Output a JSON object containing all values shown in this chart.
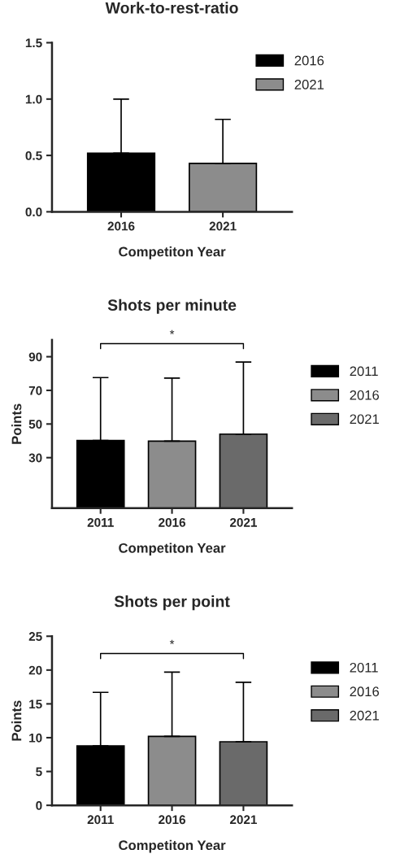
{
  "chart_data": [
    {
      "type": "bar",
      "title": "Work-to-rest-ratio",
      "xlabel": "Competiton Year",
      "categories": [
        "2016",
        "2021"
      ],
      "series": [
        {
          "name": "2016",
          "color": "#000000",
          "values": [
            0.52,
            null
          ],
          "errors": [
            [
              0.52,
              1.0
            ],
            null
          ]
        },
        {
          "name": "2021",
          "color": "#8c8c8c",
          "values": [
            null,
            0.43
          ],
          "errors": [
            null,
            [
              0.43,
              0.82
            ]
          ]
        }
      ],
      "ylim": [
        0,
        1.5
      ],
      "yticks": [
        {
          "value": 0,
          "label": "0.0"
        },
        {
          "value": 0.5,
          "label": "0.5"
        },
        {
          "value": 1,
          "label": "1.0"
        },
        {
          "value": 1.5,
          "label": "1.5"
        }
      ],
      "legend": "top right"
    },
    {
      "type": "bar",
      "title": "Shots per minute",
      "xlabel": "Competiton Year",
      "ylabel": "Points",
      "categories": [
        "2011",
        "2016",
        "2021"
      ],
      "series": [
        {
          "name": "2011",
          "color": "#000000",
          "values": [
            40.2,
            null,
            null
          ],
          "errors": [
            [
              40.2,
              77.6
            ],
            null,
            null
          ]
        },
        {
          "name": "2016",
          "color": "#8c8c8c",
          "values": [
            null,
            39.8,
            null
          ],
          "errors": [
            null,
            [
              39.8,
              77.3
            ],
            null
          ]
        },
        {
          "name": "2021",
          "color": "#6a6a6a",
          "values": [
            null,
            null,
            44.0
          ],
          "errors": [
            null,
            null,
            [
              44.0,
              86.8
            ]
          ]
        }
      ],
      "ylim": [
        0,
        100
      ],
      "yticks": [
        30,
        50,
        70,
        90
      ],
      "annotations": [
        "*"
      ],
      "legend": "right"
    },
    {
      "type": "bar",
      "title": "Shots per point",
      "xlabel": "Competiton Year",
      "ylabel": "Points",
      "categories": [
        "2011",
        "2016",
        "2021"
      ],
      "series": [
        {
          "name": "2011",
          "color": "#000000",
          "values": [
            8.8,
            null,
            null
          ],
          "errors": [
            [
              8.8,
              16.7
            ],
            null,
            null
          ]
        },
        {
          "name": "2016",
          "color": "#8c8c8c",
          "values": [
            null,
            10.2,
            null
          ],
          "errors": [
            null,
            [
              10.2,
              19.7
            ],
            null
          ]
        },
        {
          "name": "2021",
          "color": "#6a6a6a",
          "values": [
            null,
            null,
            9.4
          ],
          "errors": [
            null,
            null,
            [
              9.4,
              18.2
            ]
          ]
        }
      ],
      "ylim": [
        0,
        25
      ],
      "yticks": [
        0,
        5,
        10,
        15,
        20,
        25
      ],
      "annotations": [
        "*"
      ],
      "legend": "right"
    }
  ]
}
